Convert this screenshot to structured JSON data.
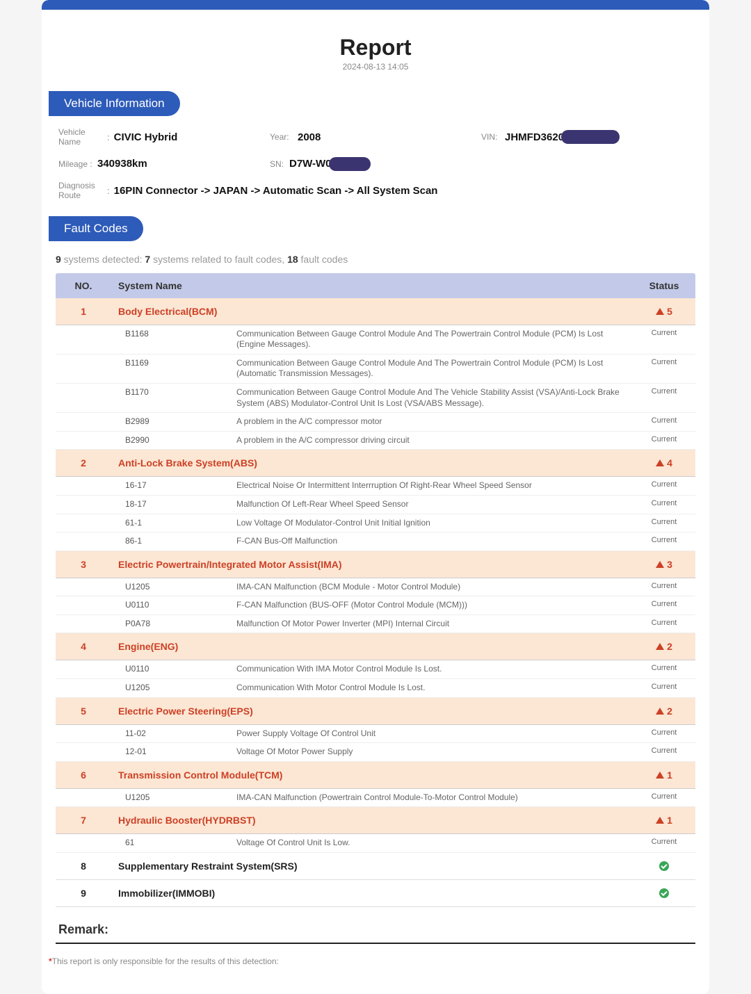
{
  "report": {
    "title": "Report",
    "date": "2024-08-13 14:05"
  },
  "sections": {
    "vehicle_info": "Vehicle Information",
    "fault_codes": "Fault Codes"
  },
  "vehicle": {
    "name_label": "Vehicle Name",
    "name": "CIVIC Hybrid",
    "year_label": "Year:",
    "year": "2008",
    "vin_label": "VIN:",
    "vin": "JHMFD3620",
    "mileage_label": "Mileage :",
    "mileage": "340938km",
    "sn_label": "SN:",
    "sn": "D7W-W0",
    "route_label": "Diagnosis Route",
    "route": "16PIN Connector -> JAPAN -> Automatic Scan -> All System Scan"
  },
  "summary": {
    "systems_detected": "9",
    "text1": " systems detected: ",
    "systems_fault": "7",
    "text2": " systems related to fault codes, ",
    "fault_codes": "18",
    "text3": " fault codes"
  },
  "headers": {
    "no": "NO.",
    "system_name": "System Name",
    "status": "Status"
  },
  "code_status_label": "Current",
  "systems": [
    {
      "no": "1",
      "name": "Body Electrical(BCM)",
      "fault": true,
      "count": "5",
      "codes": [
        {
          "code": "B1168",
          "desc": "Communication Between Gauge Control Module And The Powertrain Control Module (PCM) Is Lost (Engine Messages)."
        },
        {
          "code": "B1169",
          "desc": "Communication Between Gauge Control Module And The Powertrain Control Module (PCM) Is Lost (Automatic Transmission Messages)."
        },
        {
          "code": "B1170",
          "desc": "Communication Between Gauge Control Module And The Vehicle Stability Assist (VSA)/Anti-Lock Brake System (ABS) Modulator-Control Unit Is Lost (VSA/ABS Message)."
        },
        {
          "code": "B2989",
          "desc": "A problem in the A/C compressor motor"
        },
        {
          "code": "B2990",
          "desc": "A problem in the A/C compressor driving circuit"
        }
      ]
    },
    {
      "no": "2",
      "name": "Anti-Lock Brake System(ABS)",
      "fault": true,
      "count": "4",
      "codes": [
        {
          "code": "16-17",
          "desc": "Electrical Noise Or Intermittent Interrruption Of Right-Rear Wheel Speed Sensor"
        },
        {
          "code": "18-17",
          "desc": "Malfunction Of Left-Rear Wheel Speed Sensor"
        },
        {
          "code": "61-1",
          "desc": "Low Voltage Of Modulator-Control Unit Initial Ignition"
        },
        {
          "code": "86-1",
          "desc": "F-CAN Bus-Off Malfunction"
        }
      ]
    },
    {
      "no": "3",
      "name": "Electric Powertrain/Integrated Motor Assist(IMA)",
      "fault": true,
      "count": "3",
      "codes": [
        {
          "code": "U1205",
          "desc": "IMA-CAN Malfunction (BCM Module - Motor Control Module)"
        },
        {
          "code": "U0110",
          "desc": "F-CAN Malfunction (BUS-OFF (Motor Control Module (MCM)))"
        },
        {
          "code": "P0A78",
          "desc": "Malfunction Of Motor Power Inverter (MPI) Internal Circuit"
        }
      ]
    },
    {
      "no": "4",
      "name": "Engine(ENG)",
      "fault": true,
      "count": "2",
      "codes": [
        {
          "code": "U0110",
          "desc": "Communication With IMA Motor Control Module Is Lost."
        },
        {
          "code": "U1205",
          "desc": "Communication With Motor Control Module Is Lost."
        }
      ]
    },
    {
      "no": "5",
      "name": "Electric Power Steering(EPS)",
      "fault": true,
      "count": "2",
      "codes": [
        {
          "code": "11-02",
          "desc": "Power Supply Voltage Of Control Unit"
        },
        {
          "code": "12-01",
          "desc": "Voltage Of Motor Power Supply"
        }
      ]
    },
    {
      "no": "6",
      "name": "Transmission Control Module(TCM)",
      "fault": true,
      "count": "1",
      "codes": [
        {
          "code": "U1205",
          "desc": "IMA-CAN Malfunction (Powertrain Control Module-To-Motor Control Module)"
        }
      ]
    },
    {
      "no": "7",
      "name": "Hydraulic Booster(HYDRBST)",
      "fault": true,
      "count": "1",
      "codes": [
        {
          "code": "61",
          "desc": "Voltage Of Control Unit Is Low."
        }
      ]
    },
    {
      "no": "8",
      "name": "Supplementary Restraint System(SRS)",
      "fault": false,
      "count": "",
      "codes": []
    },
    {
      "no": "9",
      "name": "Immobilizer(IMMOBI)",
      "fault": false,
      "count": "",
      "codes": []
    }
  ],
  "remark_label": "Remark:",
  "disclaimer": "This report is only responsible for the results of this detection:",
  "colors": {
    "primary": "#2d5bb9",
    "fault_bg": "#fce6d4",
    "fault_text": "#cc4125",
    "header_bg": "#c3c9e8",
    "ok_green": "#3aa657",
    "redact": "#3a3570"
  }
}
